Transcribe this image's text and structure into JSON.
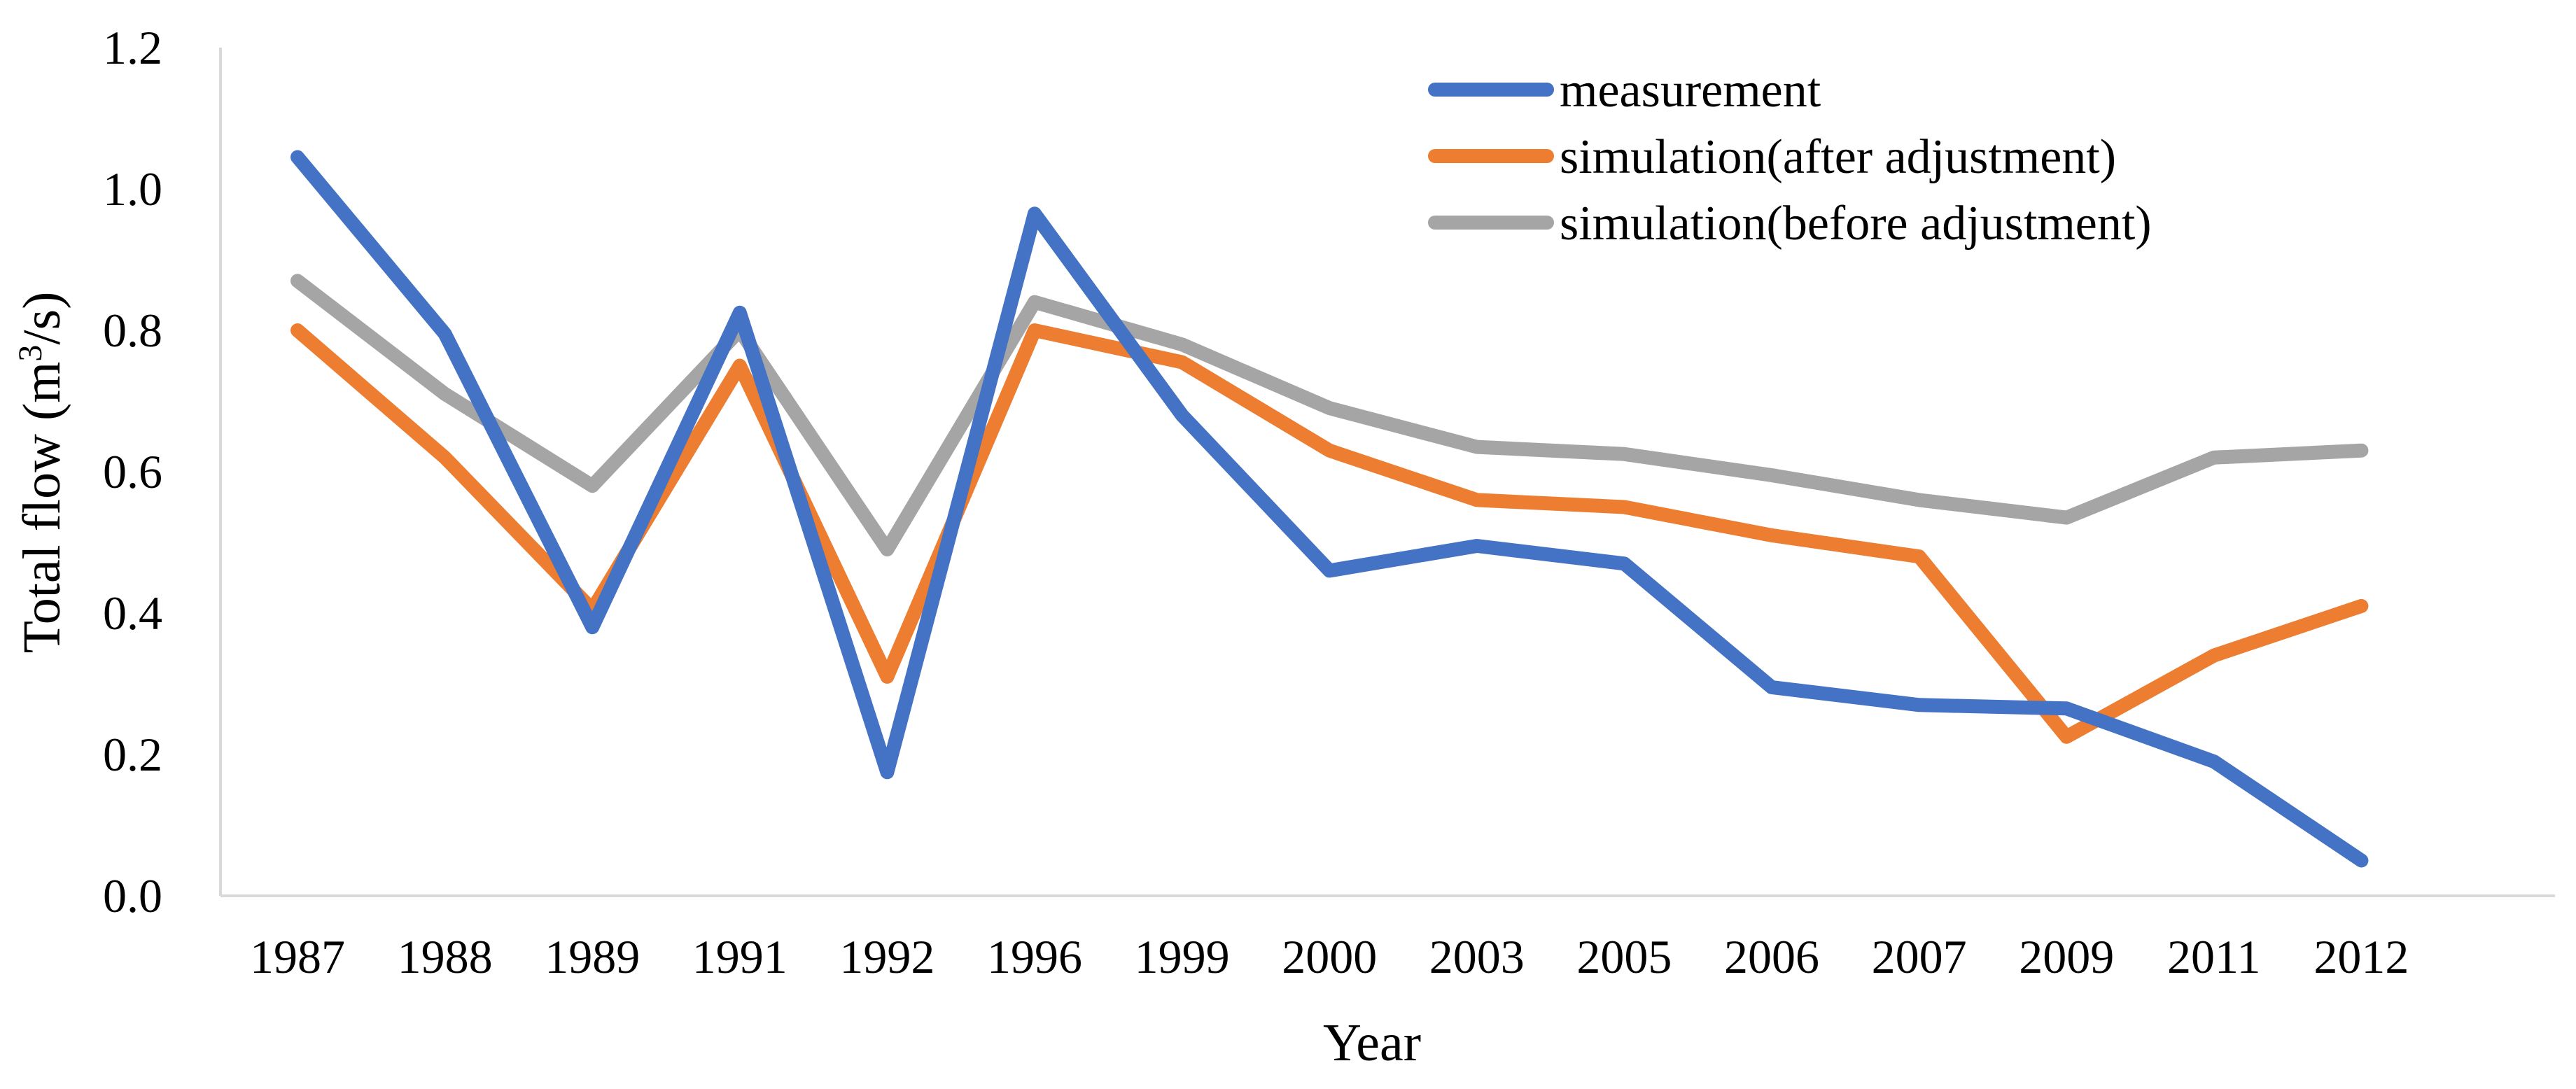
{
  "chart_data": {
    "type": "line",
    "title": "",
    "xlabel": "Year",
    "ylabel": "Total flow (m³/s)",
    "ylabel_parts": {
      "before": "Total flow (m",
      "sup": "3",
      "after": "/s)"
    },
    "ylim": [
      0.0,
      1.2
    ],
    "yticks": [
      "0.0",
      "0.2",
      "0.4",
      "0.6",
      "0.8",
      "1.0",
      "1.2"
    ],
    "grid": false,
    "legend_position": "top-right",
    "categories": [
      "1987",
      "1988",
      "1989",
      "1991",
      "1992",
      "1996",
      "1999",
      "2000",
      "2003",
      "2005",
      "2006",
      "2007",
      "2009",
      "2011",
      "2012"
    ],
    "series": [
      {
        "name": "measurement",
        "color": "#4472c4",
        "values": [
          1.045,
          0.795,
          0.38,
          0.825,
          0.175,
          0.965,
          0.68,
          0.46,
          0.495,
          0.47,
          0.295,
          0.27,
          0.265,
          0.19,
          0.05
        ]
      },
      {
        "name": "simulation(after adjustment)",
        "color": "#ed7d31",
        "values": [
          0.8,
          0.62,
          0.405,
          0.75,
          0.31,
          0.8,
          0.755,
          0.63,
          0.56,
          0.55,
          0.51,
          0.48,
          0.225,
          0.34,
          0.41
        ]
      },
      {
        "name": "simulation(before adjustment)",
        "color": "#a5a5a5",
        "values": [
          0.87,
          0.71,
          0.58,
          0.8,
          0.49,
          0.84,
          0.78,
          0.69,
          0.635,
          0.625,
          0.595,
          0.56,
          0.535,
          0.62,
          0.63
        ]
      }
    ]
  }
}
